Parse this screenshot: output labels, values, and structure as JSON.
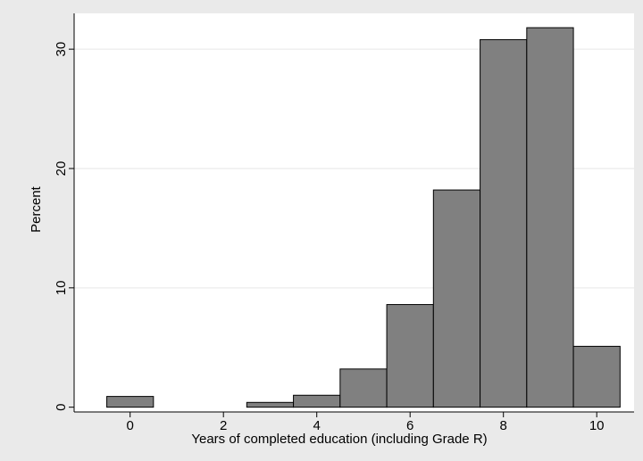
{
  "chart_data": {
    "type": "bar",
    "title": "",
    "xlabel": "Years of completed education (including Grade R)",
    "ylabel": "Percent",
    "x": [
      0,
      1,
      2,
      3,
      4,
      5,
      6,
      7,
      8,
      9,
      10
    ],
    "values": [
      0.9,
      0.0,
      0.0,
      0.4,
      1.0,
      3.2,
      8.6,
      18.2,
      30.8,
      31.8,
      5.1
    ],
    "bin_width": 1,
    "xlim": [
      -1.2,
      10.8
    ],
    "ylim": [
      -0.4,
      33
    ],
    "xticks": [
      0,
      2,
      4,
      6,
      8,
      10
    ],
    "yticks": [
      0,
      10,
      20,
      30
    ],
    "grid": true,
    "legend": "none",
    "colors": {
      "bar_fill": "#808080",
      "bar_stroke": "#000000",
      "plot_bg": "#ffffff",
      "outer_bg": "#eaeaea",
      "grid": "#e6e6e6"
    }
  }
}
